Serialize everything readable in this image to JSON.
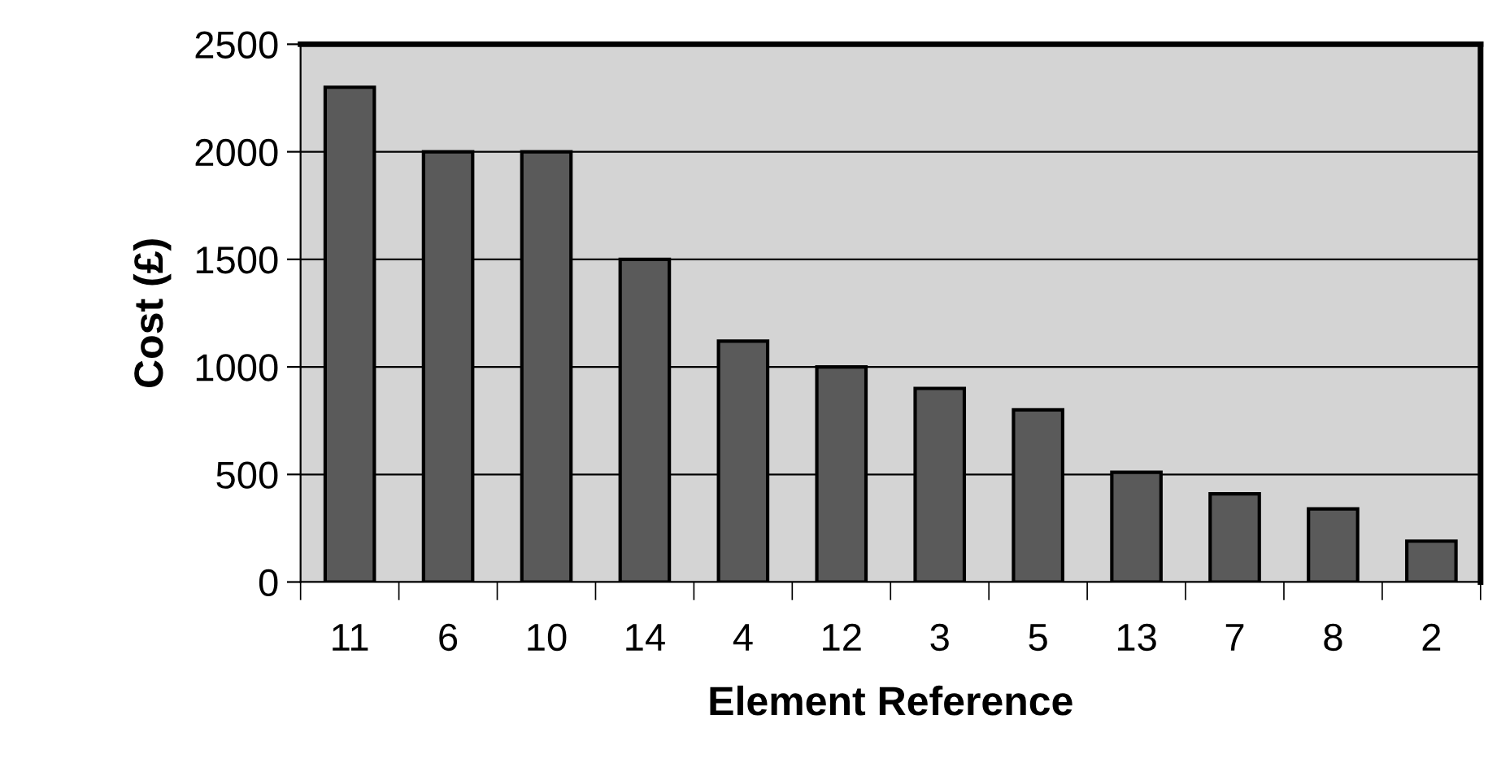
{
  "chart_data": {
    "type": "bar",
    "xlabel": "Element Reference",
    "ylabel": "Cost (£)",
    "categories": [
      "11",
      "6",
      "10",
      "14",
      "4",
      "12",
      "3",
      "5",
      "13",
      "7",
      "8",
      "2"
    ],
    "values": [
      2300,
      2000,
      2000,
      1500,
      1120,
      1000,
      900,
      800,
      510,
      410,
      340,
      190
    ],
    "color": "#5a5a5a",
    "ylim": [
      0,
      2500
    ],
    "yticks": [
      0,
      500,
      1000,
      1500,
      2000,
      2500
    ],
    "grid": "y"
  }
}
